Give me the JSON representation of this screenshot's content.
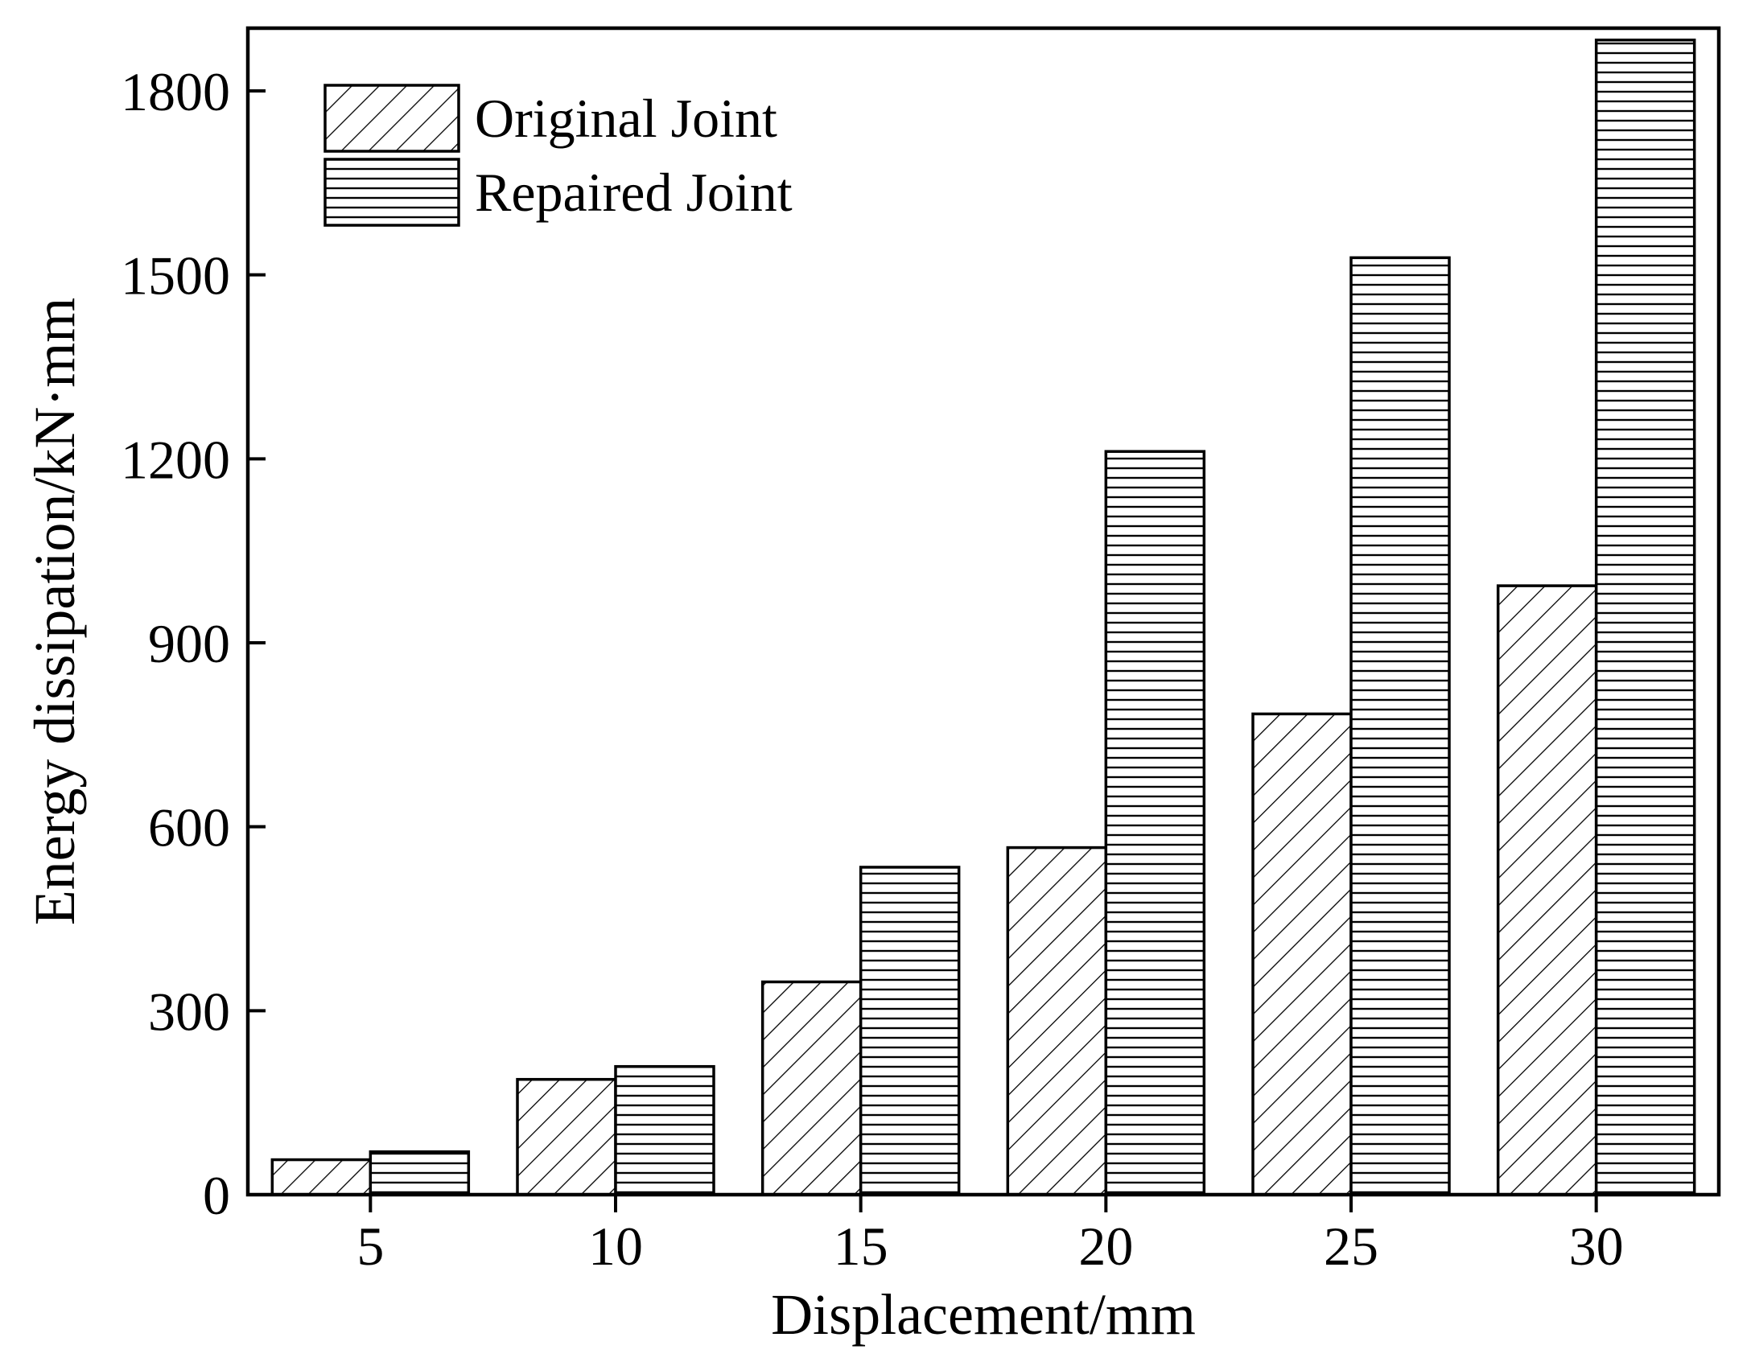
{
  "chart_data": {
    "type": "bar",
    "xlabel": "Displacement/mm",
    "ylabel": "Energy dissipation/kN·mm",
    "categories": [
      "5",
      "10",
      "15",
      "20",
      "25",
      "30"
    ],
    "ylim": [
      0,
      1900
    ],
    "yticks": [
      0,
      300,
      600,
      900,
      1200,
      1500,
      1800
    ],
    "legend_position": "top-left",
    "grid": false,
    "series": [
      {
        "name": "Original Joint",
        "pattern": "diagonal-hatch",
        "values": [
          57,
          188,
          347,
          566,
          784,
          993
        ]
      },
      {
        "name": "Repaired Joint",
        "pattern": "horizontal-hatch",
        "values": [
          70,
          209,
          534,
          1212,
          1528,
          1883
        ]
      }
    ],
    "colors": {
      "ink": "#000000",
      "background": "#ffffff"
    }
  }
}
